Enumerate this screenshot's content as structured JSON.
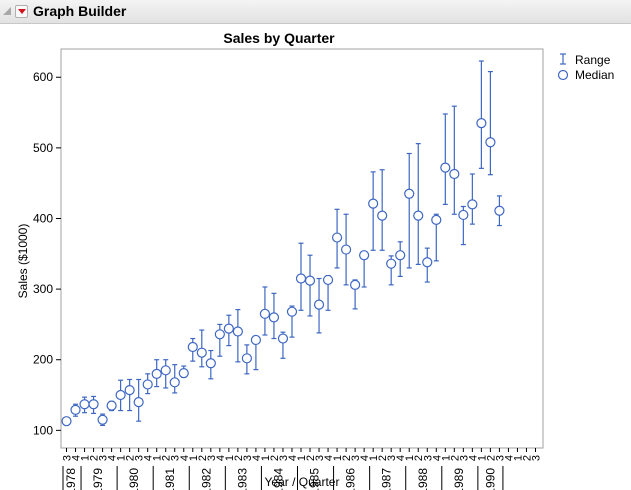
{
  "app": {
    "title": "Graph Builder",
    "collapse_icon": "disclosure-triangle-icon",
    "menu_icon": "red-menu-triangle-icon"
  },
  "colors": {
    "series": "#3d67c2",
    "marker_fill": "#ffffff",
    "frame": "#a0a0a0"
  },
  "chart_data": {
    "type": "scatter",
    "title": "Sales by Quarter",
    "xlabel": "Year / Quarter",
    "ylabel": "Sales ($1000)",
    "ylim": [
      75,
      640
    ],
    "yticks": [
      100,
      200,
      300,
      400,
      500,
      600
    ],
    "grid": false,
    "legend_position": "top-right",
    "legend": [
      "Range",
      "Median"
    ],
    "x_quarters": [
      "3",
      "4",
      "1",
      "2",
      "3",
      "4",
      "1",
      "2",
      "3",
      "4",
      "1",
      "2",
      "3",
      "4",
      "1",
      "2",
      "3",
      "4",
      "1",
      "2",
      "3",
      "4",
      "1",
      "2",
      "3",
      "4",
      "1",
      "2",
      "3",
      "4",
      "1",
      "2",
      "3",
      "4",
      "1",
      "2",
      "3",
      "4",
      "1",
      "2",
      "3",
      "4",
      "1",
      "2",
      "3",
      "4",
      "1",
      "2",
      "3",
      "4",
      "1",
      "2",
      "3"
    ],
    "x_years": [
      {
        "label": "1978",
        "start": 0,
        "end": 1
      },
      {
        "label": "1979",
        "start": 2,
        "end": 5
      },
      {
        "label": "1980",
        "start": 6,
        "end": 9
      },
      {
        "label": "1981",
        "start": 10,
        "end": 13
      },
      {
        "label": "1982",
        "start": 14,
        "end": 17
      },
      {
        "label": "1983",
        "start": 18,
        "end": 21
      },
      {
        "label": "1984",
        "start": 22,
        "end": 25
      },
      {
        "label": "1985",
        "start": 26,
        "end": 29
      },
      {
        "label": "1986",
        "start": 30,
        "end": 33
      },
      {
        "label": "1987",
        "start": 34,
        "end": 37
      },
      {
        "label": "1988",
        "start": 38,
        "end": 41
      },
      {
        "label": "1989",
        "start": 42,
        "end": 45
      },
      {
        "label": "1990",
        "start": 46,
        "end": 48
      }
    ],
    "series": [
      {
        "name": "Median",
        "values": [
          113,
          129,
          137,
          137,
          115,
          135,
          150,
          157,
          140,
          165,
          180,
          185,
          168,
          181,
          218,
          210,
          195,
          236,
          244,
          240,
          202,
          228,
          265,
          260,
          230,
          268,
          315,
          312,
          278,
          313,
          373,
          356,
          306,
          348,
          421,
          404,
          336,
          348,
          435,
          404,
          338,
          398,
          472,
          463,
          405,
          420,
          535,
          508,
          411,
          null,
          null,
          null,
          null
        ]
      },
      {
        "name": "Range",
        "low": [
          109,
          120,
          125,
          124,
          107,
          128,
          128,
          128,
          113,
          152,
          162,
          160,
          153,
          175,
          198,
          190,
          173,
          205,
          220,
          197,
          180,
          186,
          235,
          230,
          202,
          232,
          270,
          262,
          238,
          270,
          330,
          306,
          272,
          303,
          355,
          355,
          306,
          318,
          330,
          335,
          310,
          340,
          420,
          406,
          363,
          392,
          471,
          462,
          390,
          null,
          null,
          null,
          null
        ],
        "high": [
          117,
          137,
          147,
          148,
          123,
          141,
          171,
          172,
          172,
          180,
          200,
          200,
          193,
          191,
          230,
          242,
          213,
          250,
          263,
          271,
          221,
          233,
          303,
          294,
          239,
          276,
          365,
          348,
          315,
          319,
          413,
          406,
          313,
          353,
          466,
          469,
          347,
          367,
          492,
          506,
          358,
          406,
          548,
          559,
          417,
          463,
          623,
          608,
          432,
          null,
          null,
          null,
          null
        ]
      }
    ]
  }
}
